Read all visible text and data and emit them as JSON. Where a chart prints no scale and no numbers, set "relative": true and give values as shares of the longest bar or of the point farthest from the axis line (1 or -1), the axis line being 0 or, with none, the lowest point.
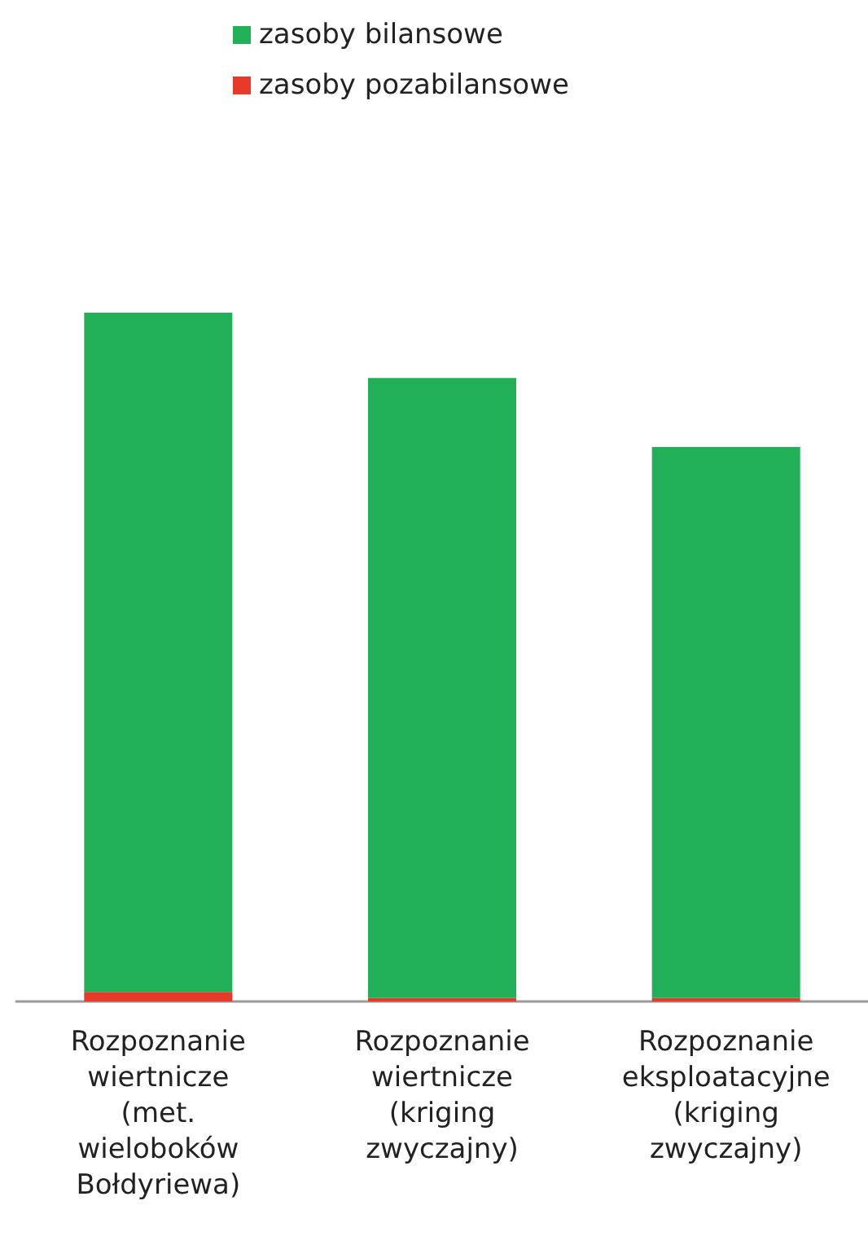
{
  "chart_data": {
    "type": "bar",
    "stacked": true,
    "relative": true,
    "legend": "top",
    "categories": [
      "Rozpoznanie\nwiertnicze\n(met.\nwieloboków\nBołdyriewa)",
      "Rozpoznanie\nwiertnicze\n(kriging\nzwyczajny)",
      "Rozpoznanie\neksploatacyjne\n(kriging\nzwyczajny)"
    ],
    "series": [
      {
        "name": "zasoby pozabilansowe",
        "color": "#e8392a",
        "values": [
          0.014,
          0.005,
          0.005
        ]
      },
      {
        "name": "zasoby bilansowe",
        "color": "#21b057",
        "values": [
          0.986,
          0.9,
          0.8
        ]
      }
    ]
  }
}
